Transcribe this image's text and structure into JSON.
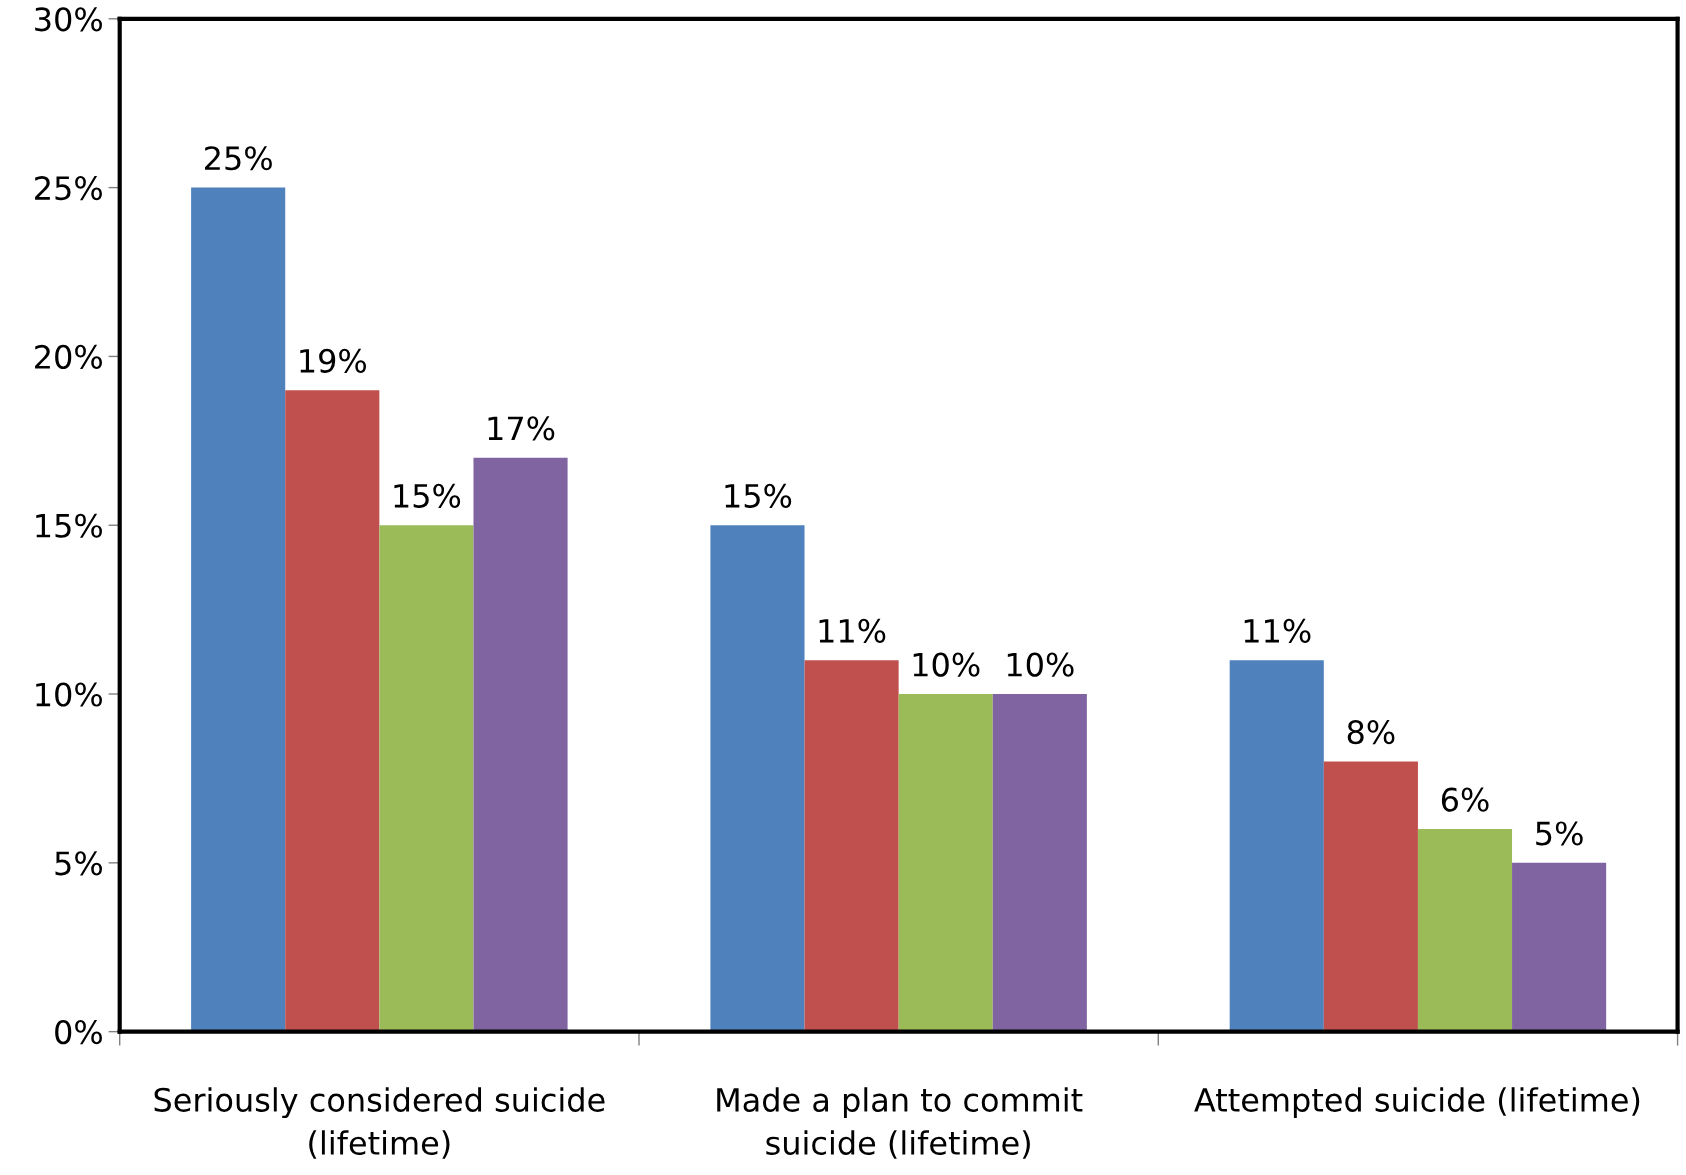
{
  "chart_data": {
    "type": "bar",
    "categories": [
      "Seriously considered suicide\n(lifetime)",
      "Made a plan to commit\nsuicide (lifetime)",
      "Attempted suicide (lifetime)"
    ],
    "series": [
      {
        "color": "#4f81bd",
        "values": [
          25,
          15,
          11
        ],
        "value_labels": [
          "25%",
          "15%",
          "11%"
        ]
      },
      {
        "color": "#c0504d",
        "values": [
          19,
          11,
          8
        ],
        "value_labels": [
          "19%",
          "11%",
          "8%"
        ]
      },
      {
        "color": "#9bbb59",
        "values": [
          15,
          10,
          6
        ],
        "value_labels": [
          "15%",
          "10%",
          "6%"
        ]
      },
      {
        "color": "#8064a2",
        "values": [
          17,
          10,
          5
        ],
        "value_labels": [
          "17%",
          "10%",
          "5%"
        ]
      }
    ],
    "ylim": [
      0,
      30
    ],
    "yticks": [
      {
        "value": 0,
        "label": "0%"
      },
      {
        "value": 5,
        "label": "5%"
      },
      {
        "value": 10,
        "label": "10%"
      },
      {
        "value": 15,
        "label": "15%"
      },
      {
        "value": 20,
        "label": "20%"
      },
      {
        "value": 25,
        "label": "25%"
      },
      {
        "value": 30,
        "label": "30%"
      }
    ],
    "grid": false
  }
}
